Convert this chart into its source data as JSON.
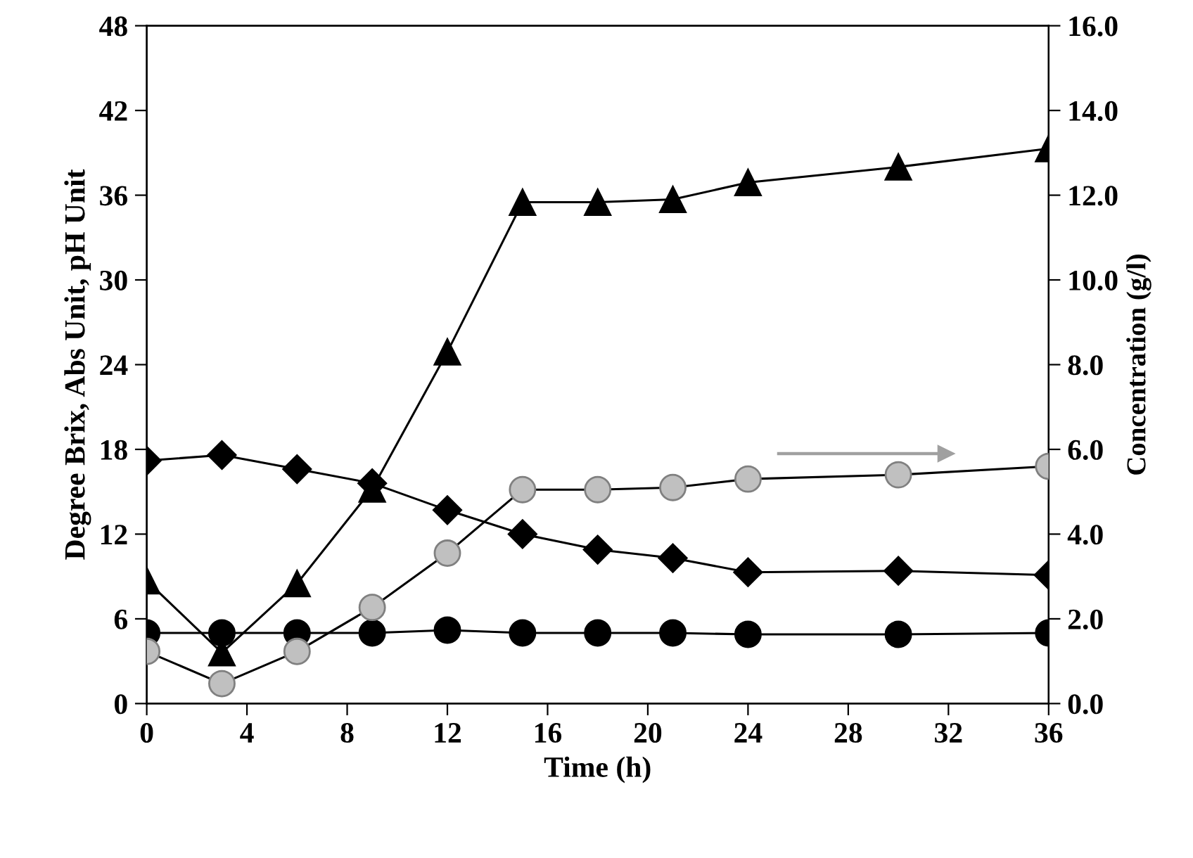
{
  "chart_data": {
    "type": "line",
    "xlabel": "Time (h)",
    "ylabel": "Degree Brix, Abs Unit, pH Unit",
    "y2label": "Concentration (g/l)",
    "x": [
      0,
      3,
      6,
      9,
      12,
      15,
      18,
      21,
      24,
      30,
      36
    ],
    "xlim": [
      0,
      36
    ],
    "xticks": [
      0,
      4,
      8,
      12,
      16,
      20,
      24,
      28,
      32,
      36
    ],
    "ylim": [
      0,
      48
    ],
    "yticks": [
      0,
      6,
      12,
      18,
      24,
      30,
      36,
      42,
      48
    ],
    "y2lim": [
      0,
      16
    ],
    "y2ticks": [
      {
        "value": 0,
        "label": "0.0"
      },
      {
        "value": 2,
        "label": "2.0"
      },
      {
        "value": 4,
        "label": "4.0"
      },
      {
        "value": 6,
        "label": "6.0"
      },
      {
        "value": 8,
        "label": "8.0"
      },
      {
        "value": 10,
        "label": "10.0"
      },
      {
        "value": 12,
        "label": "12.0"
      },
      {
        "value": 14,
        "label": "14.0"
      },
      {
        "value": 16,
        "label": "16.0"
      }
    ],
    "grid": false,
    "legend": false,
    "series": [
      {
        "color": "#000000",
        "marker": "triangle",
        "values": [
          8.7,
          3.6,
          8.5,
          15.2,
          24.9,
          35.5,
          35.5,
          35.7,
          36.9,
          38.0,
          39.3
        ]
      },
      {
        "color": "#000000",
        "marker": "diamond",
        "values": [
          17.2,
          17.6,
          16.6,
          15.6,
          13.7,
          12.0,
          10.9,
          10.3,
          9.3,
          9.4,
          9.1
        ]
      },
      {
        "color": "#000000",
        "marker": "circle",
        "values": [
          5.0,
          5.0,
          5.0,
          5.0,
          5.2,
          5.0,
          5.0,
          5.0,
          4.9,
          4.9,
          5.0
        ]
      },
      {
        "color": "#c0c0c0",
        "marker": "circle",
        "axis": "y2",
        "values": [
          1.23,
          0.47,
          1.23,
          2.27,
          3.55,
          5.05,
          5.05,
          5.1,
          5.3,
          5.4,
          5.6
        ]
      }
    ]
  }
}
